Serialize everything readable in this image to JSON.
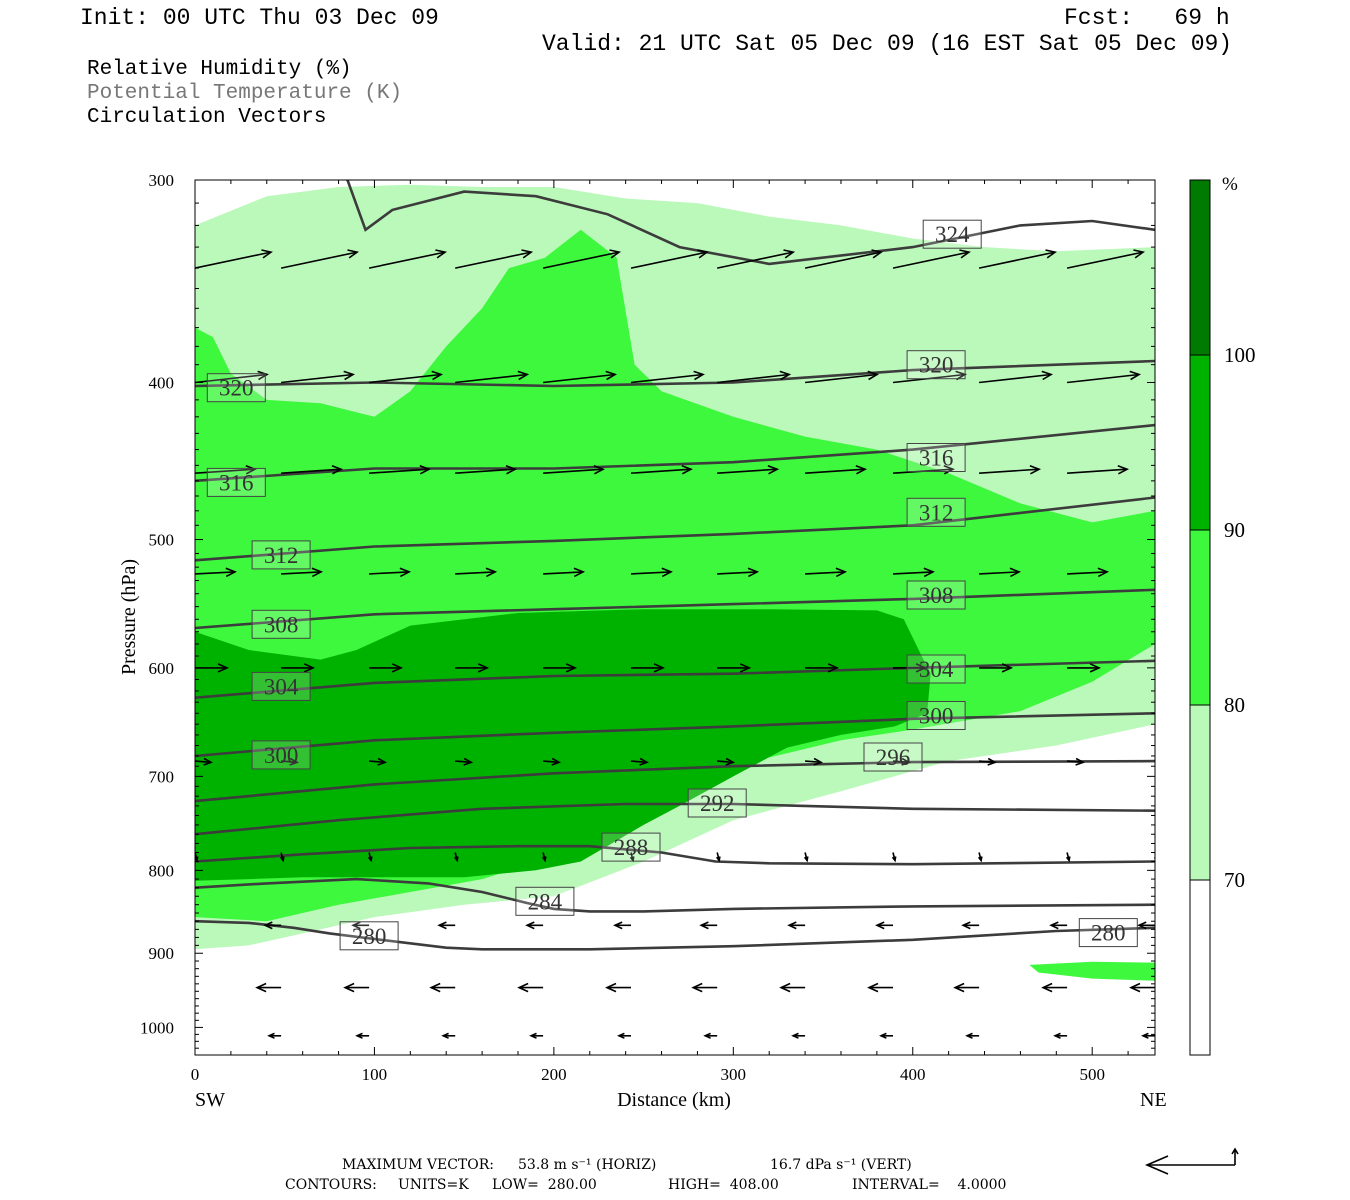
{
  "header": {
    "init": "Init: 00 UTC Thu 03 Dec 09",
    "fcst": "Fcst:   69 h",
    "valid": "Valid: 21 UTC Sat 05 Dec 09 (16 EST Sat 05 Dec 09)"
  },
  "legend_lines": {
    "rh": "Relative Humidity (%)",
    "theta": "Potential Temperature (K)",
    "vectors": "Circulation Vectors"
  },
  "footer": {
    "max_vector_label": "MAXIMUM VECTOR:",
    "max_vector_horiz": "53.8 m s⁻¹ (HORIZ)",
    "max_vector_vert": "16.7 dPa s⁻¹ (VERT)",
    "contours_label": "CONTOURS:",
    "contours_units": "UNITS=K",
    "contours_low": "LOW=  280.00",
    "contours_high": "HIGH=  408.00",
    "contours_interval": "INTERVAL=    4.0000"
  },
  "colors": {
    "rh_70_80": "#bbf9bb",
    "rh_80_90": "#3ef83e",
    "rh_90_100": "#00b200",
    "rh_100_plus": "#007a00",
    "contour": "#3c3c3c"
  },
  "chart_data": {
    "type": "area",
    "subtype": "cross-section",
    "xlabel": "Distance (km)",
    "ylabel": "Pressure (hPa)",
    "xlim": [
      0,
      535
    ],
    "ylim": [
      1040,
      300
    ],
    "y_scale": "log",
    "x_ticks": [
      0,
      100,
      200,
      300,
      400,
      500
    ],
    "y_ticks": [
      300,
      400,
      500,
      600,
      700,
      800,
      900,
      1000
    ],
    "x_end_labels": {
      "left": "SW",
      "right": "NE"
    },
    "colorbar": {
      "unit": "%",
      "tick_labels": [
        "70",
        "80",
        "90",
        "100"
      ],
      "levels": [
        70,
        80,
        90,
        100
      ]
    },
    "rh_regions": [
      {
        "level": 70,
        "points": [
          [
            0,
            320
          ],
          [
            40,
            307
          ],
          [
            80,
            303
          ],
          [
            120,
            302
          ],
          [
            160,
            303
          ],
          [
            200,
            303
          ],
          [
            240,
            308
          ],
          [
            280,
            310
          ],
          [
            320,
            316
          ],
          [
            360,
            320
          ],
          [
            400,
            326
          ],
          [
            440,
            330
          ],
          [
            480,
            332
          ],
          [
            535,
            330
          ],
          [
            535,
            650
          ],
          [
            480,
            670
          ],
          [
            420,
            685
          ],
          [
            360,
            715
          ],
          [
            300,
            745
          ],
          [
            250,
            790
          ],
          [
            200,
            830
          ],
          [
            150,
            840
          ],
          [
            100,
            855
          ],
          [
            60,
            875
          ],
          [
            30,
            890
          ],
          [
            0,
            895
          ]
        ]
      },
      {
        "level": 80,
        "points": [
          [
            0,
            370
          ],
          [
            10,
            375
          ],
          [
            20,
            395
          ],
          [
            40,
            410
          ],
          [
            70,
            412
          ],
          [
            100,
            420
          ],
          [
            120,
            405
          ],
          [
            140,
            380
          ],
          [
            160,
            360
          ],
          [
            175,
            340
          ],
          [
            195,
            335
          ],
          [
            215,
            322
          ],
          [
            235,
            335
          ],
          [
            245,
            390
          ],
          [
            260,
            405
          ],
          [
            300,
            420
          ],
          [
            340,
            432
          ],
          [
            380,
            440
          ],
          [
            420,
            455
          ],
          [
            460,
            475
          ],
          [
            500,
            488
          ],
          [
            535,
            480
          ],
          [
            535,
            580
          ],
          [
            500,
            612
          ],
          [
            460,
            638
          ],
          [
            400,
            655
          ],
          [
            360,
            665
          ],
          [
            300,
            690
          ],
          [
            250,
            730
          ],
          [
            220,
            770
          ],
          [
            200,
            785
          ],
          [
            160,
            810
          ],
          [
            120,
            825
          ],
          [
            80,
            840
          ],
          [
            40,
            860
          ],
          [
            0,
            855
          ]
        ]
      },
      {
        "level": 80,
        "points": [
          [
            465,
            915
          ],
          [
            500,
            911
          ],
          [
            535,
            912
          ],
          [
            535,
            936
          ],
          [
            500,
            933
          ],
          [
            470,
            925
          ]
        ]
      },
      {
        "level": 90,
        "points": [
          [
            0,
            570
          ],
          [
            30,
            585
          ],
          [
            70,
            593
          ],
          [
            90,
            585
          ],
          [
            120,
            565
          ],
          [
            180,
            555
          ],
          [
            250,
            552
          ],
          [
            320,
            552
          ],
          [
            380,
            553
          ],
          [
            395,
            560
          ],
          [
            405,
            590
          ],
          [
            410,
            605
          ],
          [
            408,
            640
          ],
          [
            390,
            652
          ],
          [
            360,
            660
          ],
          [
            330,
            672
          ],
          [
            300,
            700
          ],
          [
            270,
            730
          ],
          [
            250,
            750
          ],
          [
            215,
            790
          ],
          [
            190,
            800
          ],
          [
            150,
            808
          ],
          [
            100,
            808
          ],
          [
            60,
            808
          ],
          [
            30,
            810
          ],
          [
            0,
            812
          ]
        ]
      }
    ],
    "theta_contours": [
      {
        "theta": 280,
        "points": [
          [
            0,
            860
          ],
          [
            30,
            862
          ],
          [
            55,
            868
          ],
          [
            75,
            875
          ],
          [
            100,
            882
          ],
          [
            140,
            893
          ],
          [
            160,
            895
          ],
          [
            220,
            895
          ],
          [
            300,
            891
          ],
          [
            400,
            883
          ],
          [
            480,
            872
          ],
          [
            535,
            868
          ]
        ]
      },
      {
        "theta": 284,
        "points": [
          [
            0,
            820
          ],
          [
            40,
            815
          ],
          [
            90,
            810
          ],
          [
            130,
            815
          ],
          [
            160,
            825
          ],
          [
            185,
            838
          ],
          [
            200,
            845
          ],
          [
            220,
            848
          ],
          [
            250,
            848
          ],
          [
            300,
            845
          ],
          [
            400,
            842
          ],
          [
            535,
            840
          ]
        ]
      },
      {
        "theta": 288,
        "points": [
          [
            0,
            790
          ],
          [
            60,
            782
          ],
          [
            120,
            775
          ],
          [
            180,
            773
          ],
          [
            220,
            773
          ],
          [
            260,
            780
          ],
          [
            290,
            790
          ],
          [
            320,
            792
          ],
          [
            400,
            793
          ],
          [
            535,
            790
          ]
        ]
      },
      {
        "theta": 292,
        "points": [
          [
            0,
            760
          ],
          [
            80,
            745
          ],
          [
            160,
            733
          ],
          [
            240,
            728
          ],
          [
            300,
            728
          ],
          [
            400,
            733
          ],
          [
            535,
            735
          ]
        ]
      },
      {
        "theta": 296,
        "points": [
          [
            0,
            725
          ],
          [
            100,
            708
          ],
          [
            200,
            697
          ],
          [
            300,
            690
          ],
          [
            400,
            686
          ],
          [
            535,
            685
          ]
        ]
      },
      {
        "theta": 300,
        "points": [
          [
            0,
            680
          ],
          [
            100,
            665
          ],
          [
            200,
            658
          ],
          [
            300,
            652
          ],
          [
            400,
            645
          ],
          [
            535,
            640
          ]
        ]
      },
      {
        "theta": 304,
        "points": [
          [
            0,
            626
          ],
          [
            100,
            613
          ],
          [
            200,
            607
          ],
          [
            300,
            605
          ],
          [
            400,
            600
          ],
          [
            535,
            594
          ]
        ]
      },
      {
        "theta": 308,
        "points": [
          [
            0,
            567
          ],
          [
            100,
            556
          ],
          [
            200,
            552
          ],
          [
            300,
            548
          ],
          [
            400,
            544
          ],
          [
            535,
            537
          ]
        ]
      },
      {
        "theta": 312,
        "points": [
          [
            0,
            515
          ],
          [
            100,
            505
          ],
          [
            200,
            501
          ],
          [
            300,
            496
          ],
          [
            400,
            490
          ],
          [
            535,
            471
          ]
        ]
      },
      {
        "theta": 316,
        "points": [
          [
            0,
            460
          ],
          [
            100,
            452
          ],
          [
            200,
            452
          ],
          [
            300,
            448
          ],
          [
            400,
            440
          ],
          [
            535,
            425
          ]
        ]
      },
      {
        "theta": 320,
        "points": [
          [
            0,
            402
          ],
          [
            100,
            400
          ],
          [
            200,
            402
          ],
          [
            300,
            400
          ],
          [
            400,
            393
          ],
          [
            535,
            388
          ]
        ]
      },
      {
        "theta": 324,
        "points": [
          [
            85,
            300
          ],
          [
            95,
            322
          ],
          [
            110,
            313
          ],
          [
            150,
            305
          ],
          [
            190,
            307
          ],
          [
            230,
            315
          ],
          [
            270,
            330
          ],
          [
            320,
            338
          ],
          [
            400,
            330
          ],
          [
            460,
            320
          ],
          [
            500,
            318
          ],
          [
            535,
            322
          ]
        ]
      }
    ],
    "contour_labels": [
      {
        "text": "324",
        "x": 422,
        "p": 324
      },
      {
        "text": "320",
        "x": 23,
        "p": 403
      },
      {
        "text": "320",
        "x": 413,
        "p": 390
      },
      {
        "text": "316",
        "x": 23,
        "p": 461
      },
      {
        "text": "316",
        "x": 413,
        "p": 445
      },
      {
        "text": "312",
        "x": 48,
        "p": 511
      },
      {
        "text": "312",
        "x": 413,
        "p": 481
      },
      {
        "text": "308",
        "x": 48,
        "p": 564
      },
      {
        "text": "308",
        "x": 413,
        "p": 541
      },
      {
        "text": "304",
        "x": 48,
        "p": 616
      },
      {
        "text": "304",
        "x": 413,
        "p": 601
      },
      {
        "text": "300",
        "x": 48,
        "p": 679
      },
      {
        "text": "300",
        "x": 413,
        "p": 642
      },
      {
        "text": "296",
        "x": 389,
        "p": 681
      },
      {
        "text": "292",
        "x": 291,
        "p": 727
      },
      {
        "text": "288",
        "x": 243,
        "p": 774
      },
      {
        "text": "284",
        "x": 195,
        "p": 836
      },
      {
        "text": "280",
        "x": 97,
        "p": 878
      },
      {
        "text": "280",
        "x": 509,
        "p": 874
      }
    ],
    "vector_levels": [
      {
        "p": 340,
        "u": 1.9,
        "w": 0.4
      },
      {
        "p": 400,
        "u": 1.8,
        "w": 0.2
      },
      {
        "p": 455,
        "u": 1.5,
        "w": 0.1
      },
      {
        "p": 525,
        "u": 1.0,
        "w": 0.05
      },
      {
        "p": 600,
        "u": 0.8,
        "w": 0.0
      },
      {
        "p": 685,
        "u": 0.4,
        "w": -0.03
      },
      {
        "p": 780,
        "u": 0.05,
        "w": -0.2
      },
      {
        "p": 865,
        "u": -0.4,
        "w": 0.0
      },
      {
        "p": 945,
        "u": -0.6,
        "w": 0.0
      },
      {
        "p": 1012,
        "u": -0.3,
        "w": 0.0
      }
    ],
    "vector_x": [
      0,
      48,
      97,
      145,
      194,
      243,
      291,
      340,
      389,
      437,
      486,
      535
    ]
  }
}
